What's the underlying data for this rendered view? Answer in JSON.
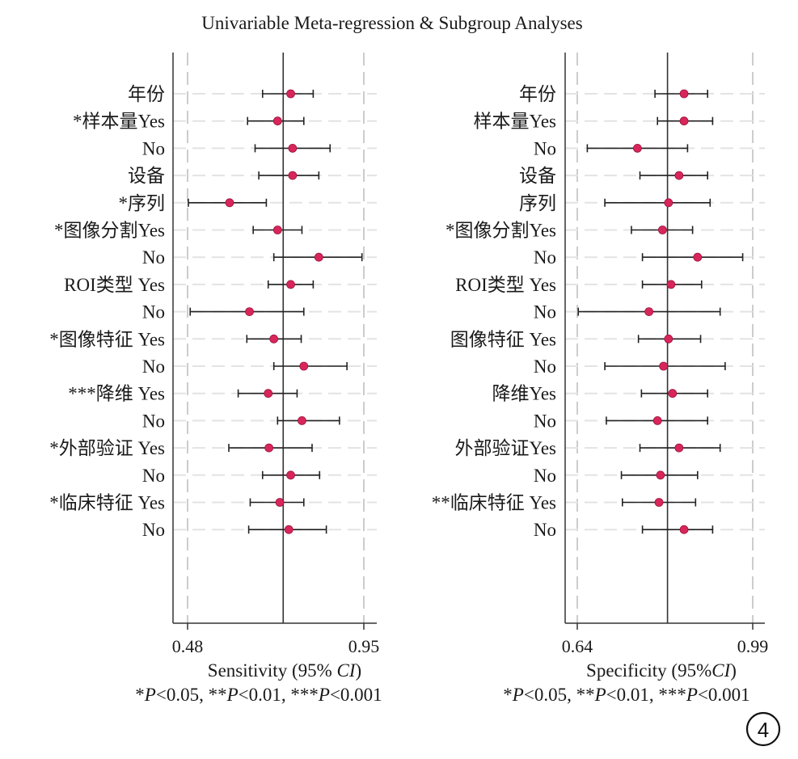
{
  "title": "Univariable Meta-regression & Subgroup Analyses",
  "badge": "4",
  "colors": {
    "point": "#d8265a",
    "line": "#222222",
    "grid": "#cccccc"
  },
  "chart_data": [
    {
      "type": "scatter",
      "xlabel_prefix": "Sensitivity (95% ",
      "xlabel_italic": "CI",
      "xlabel_suffix": ")",
      "xlim": [
        0.48,
        0.95
      ],
      "xticks": [
        "0.48",
        "0.95"
      ],
      "ref_line": 0.735,
      "pnote": "*P<0.05, **P<0.01, ***P<0.001",
      "rows": [
        {
          "label": "年份",
          "est": 0.755,
          "lo": 0.68,
          "hi": 0.815
        },
        {
          "label": "*样本量Yes",
          "est": 0.72,
          "lo": 0.64,
          "hi": 0.79
        },
        {
          "label": "No",
          "est": 0.76,
          "lo": 0.66,
          "hi": 0.86
        },
        {
          "label": "设备",
          "est": 0.76,
          "lo": 0.67,
          "hi": 0.83
        },
        {
          "label": "*序列",
          "est": 0.592,
          "lo": 0.482,
          "hi": 0.69
        },
        {
          "label": "*图像分割Yes",
          "est": 0.72,
          "lo": 0.655,
          "hi": 0.785
        },
        {
          "label": "No",
          "est": 0.83,
          "lo": 0.71,
          "hi": 0.945
        },
        {
          "label": "ROI类型 Yes",
          "est": 0.755,
          "lo": 0.695,
          "hi": 0.815
        },
        {
          "label": "No",
          "est": 0.645,
          "lo": 0.487,
          "hi": 0.79
        },
        {
          "label": "*图像特征 Yes",
          "est": 0.71,
          "lo": 0.638,
          "hi": 0.783
        },
        {
          "label": "No",
          "est": 0.79,
          "lo": 0.71,
          "hi": 0.905
        },
        {
          "label": "***降维 Yes",
          "est": 0.695,
          "lo": 0.615,
          "hi": 0.772
        },
        {
          "label": "No",
          "est": 0.785,
          "lo": 0.72,
          "hi": 0.885
        },
        {
          "label": "*外部验证 Yes",
          "est": 0.697,
          "lo": 0.59,
          "hi": 0.812
        },
        {
          "label": "No",
          "est": 0.755,
          "lo": 0.68,
          "hi": 0.832
        },
        {
          "label": "*临床特征 Yes",
          "est": 0.726,
          "lo": 0.647,
          "hi": 0.79
        },
        {
          "label": "No",
          "est": 0.75,
          "lo": 0.643,
          "hi": 0.85
        }
      ]
    },
    {
      "type": "scatter",
      "xlabel_prefix": "Specificity (95%",
      "xlabel_italic": "CI",
      "xlabel_suffix": ")",
      "xlim": [
        0.64,
        0.99
      ],
      "xticks": [
        "0.64",
        "0.99"
      ],
      "ref_line": 0.82,
      "pnote": "*P<0.05, **P<0.01, ***P<0.001",
      "rows": [
        {
          "label": "年份",
          "est": 0.853,
          "lo": 0.795,
          "hi": 0.9
        },
        {
          "label": "样本量Yes",
          "est": 0.853,
          "lo": 0.8,
          "hi": 0.91
        },
        {
          "label": "No",
          "est": 0.76,
          "lo": 0.66,
          "hi": 0.86
        },
        {
          "label": "设备",
          "est": 0.843,
          "lo": 0.765,
          "hi": 0.9
        },
        {
          "label": "序列",
          "est": 0.822,
          "lo": 0.695,
          "hi": 0.905
        },
        {
          "label": "*图像分割Yes",
          "est": 0.81,
          "lo": 0.748,
          "hi": 0.87
        },
        {
          "label": "No",
          "est": 0.88,
          "lo": 0.77,
          "hi": 0.97
        },
        {
          "label": "ROI类型 Yes",
          "est": 0.827,
          "lo": 0.77,
          "hi": 0.888
        },
        {
          "label": "No",
          "est": 0.783,
          "lo": 0.642,
          "hi": 0.925
        },
        {
          "label": "图像特征 Yes",
          "est": 0.822,
          "lo": 0.762,
          "hi": 0.886
        },
        {
          "label": "No",
          "est": 0.812,
          "lo": 0.695,
          "hi": 0.935
        },
        {
          "label": "降维Yes",
          "est": 0.83,
          "lo": 0.768,
          "hi": 0.9
        },
        {
          "label": "No",
          "est": 0.8,
          "lo": 0.698,
          "hi": 0.9
        },
        {
          "label": "外部验证Yes",
          "est": 0.843,
          "lo": 0.765,
          "hi": 0.925
        },
        {
          "label": "No",
          "est": 0.806,
          "lo": 0.728,
          "hi": 0.88
        },
        {
          "label": "**临床特征 Yes",
          "est": 0.803,
          "lo": 0.73,
          "hi": 0.876
        },
        {
          "label": "No",
          "est": 0.853,
          "lo": 0.77,
          "hi": 0.91
        }
      ]
    }
  ]
}
